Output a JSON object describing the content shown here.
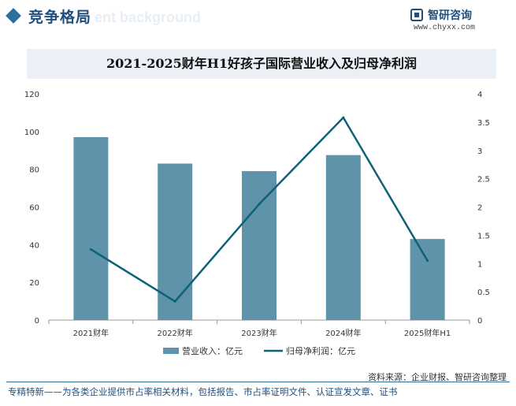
{
  "header": {
    "section_title": "竞争格局",
    "watermark_text": "ent background",
    "logo_name": "智研咨询",
    "logo_url": "www.chyxx.com"
  },
  "source": "资料来源：企业财报、智研咨询整理",
  "footer": "专精特新——为各类企业提供市占率相关材料，包括报告、市占率证明文件、认证宣发文章、证书",
  "colors": {
    "bar": "#5f93a9",
    "line": "#0f6178",
    "axis": "#999999",
    "accent": "#2a6f9e"
  },
  "chart_data": {
    "type": "bar+line",
    "title": "2021-2025财年H1好孩子国际营业收入及归母净利润",
    "categories": [
      "2021财年",
      "2022财年",
      "2023财年",
      "2024财年",
      "2025财年H1"
    ],
    "series": [
      {
        "name": "营业收入：亿元",
        "type": "bar",
        "axis": "left",
        "values": [
          97,
          83,
          79,
          87.5,
          43
        ]
      },
      {
        "name": "归母净利润：亿元",
        "type": "line",
        "axis": "right",
        "values": [
          1.25,
          0.33,
          2.05,
          3.58,
          1.05
        ]
      }
    ],
    "y_left": {
      "min": 0,
      "max": 120,
      "ticks": [
        "0",
        "20",
        "40",
        "60",
        "80",
        "100",
        "120"
      ]
    },
    "y_right": {
      "min": 0,
      "max": 4,
      "ticks": [
        "0",
        "0.5",
        "1",
        "1.5",
        "2",
        "2.5",
        "3",
        "3.5",
        "4"
      ]
    },
    "grid": false,
    "legend_position": "bottom"
  }
}
